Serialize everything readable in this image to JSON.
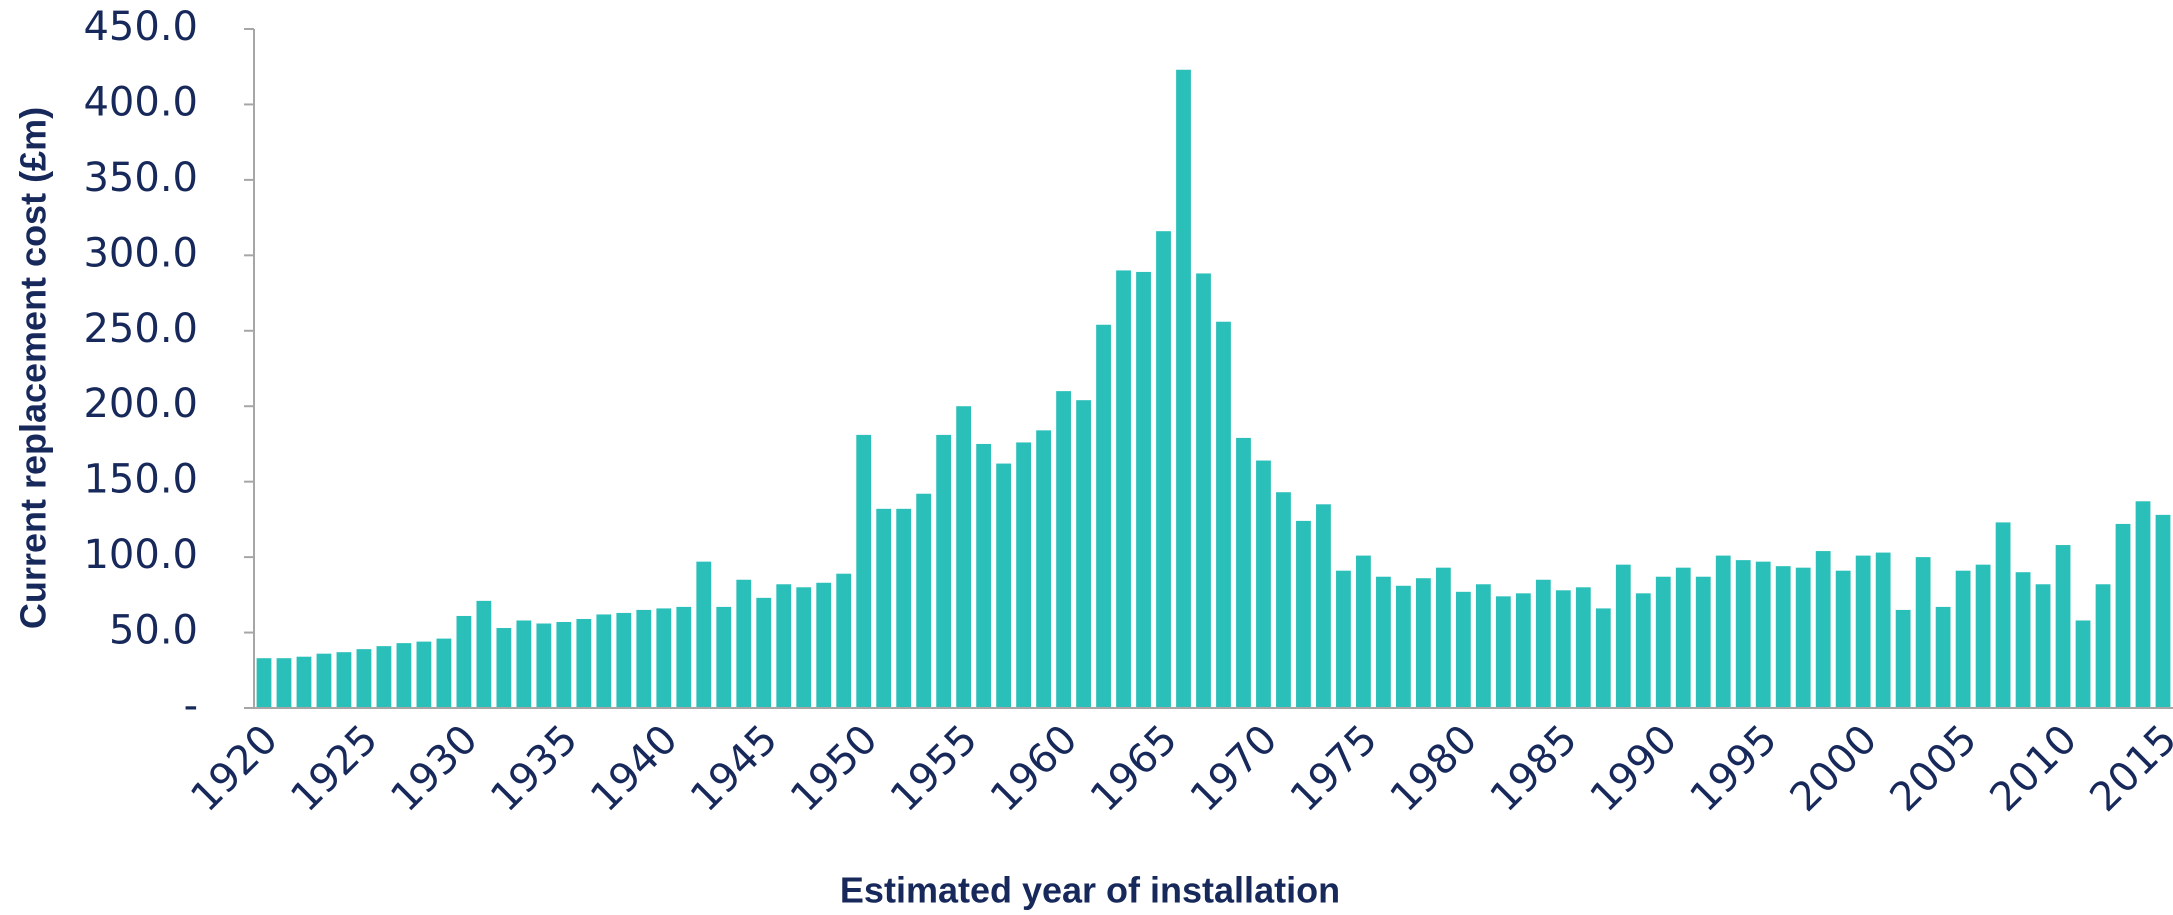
{
  "chart_data": {
    "type": "bar",
    "x_label": "Estimated year of installation",
    "y_label": "Current replacement cost (£m)",
    "categories": [
      "1920",
      null,
      null,
      null,
      null,
      "1925",
      null,
      null,
      null,
      null,
      "1930",
      null,
      null,
      null,
      null,
      "1935",
      null,
      null,
      null,
      null,
      "1940",
      null,
      null,
      null,
      null,
      "1945",
      null,
      null,
      null,
      null,
      "1950",
      null,
      null,
      null,
      null,
      "1955",
      null,
      null,
      null,
      null,
      "1960",
      null,
      null,
      null,
      null,
      "1965",
      null,
      null,
      null,
      null,
      "1970",
      null,
      null,
      null,
      null,
      "1975",
      null,
      null,
      null,
      null,
      "1980",
      null,
      null,
      null,
      null,
      "1985",
      null,
      null,
      null,
      null,
      "1990",
      null,
      null,
      null,
      null,
      "1995",
      null,
      null,
      null,
      null,
      "2000",
      null,
      null,
      null,
      null,
      "2005",
      null,
      null,
      null,
      null,
      "2010",
      null,
      null,
      null,
      null,
      "2015"
    ],
    "values": [
      33,
      33,
      34,
      36,
      37,
      39,
      41,
      43,
      44,
      46,
      61,
      71,
      53,
      58,
      56,
      57,
      59,
      62,
      63,
      65,
      66,
      67,
      97,
      67,
      85,
      73,
      82,
      80,
      83,
      89,
      181,
      132,
      132,
      142,
      181,
      200,
      175,
      162,
      176,
      184,
      210,
      204,
      254,
      290,
      289,
      316,
      423,
      288,
      256,
      179,
      164,
      143,
      124,
      135,
      91,
      101,
      87,
      81,
      86,
      93,
      77,
      82,
      74,
      76,
      85,
      78,
      80,
      66,
      95,
      76,
      87,
      93,
      87,
      101,
      98,
      97,
      94,
      93,
      104,
      91,
      101,
      103,
      65,
      100,
      67,
      91,
      95,
      123,
      90,
      82,
      108,
      58,
      82,
      122,
      137,
      128
    ],
    "color": "#2bbfb9",
    "ylim": [
      0,
      450
    ],
    "yticks": [
      {
        "value": 0,
        "label": "-"
      },
      {
        "value": 50,
        "label": "50.0"
      },
      {
        "value": 100,
        "label": "100.0"
      },
      {
        "value": 150,
        "label": "150.0"
      },
      {
        "value": 200,
        "label": "200.0"
      },
      {
        "value": 250,
        "label": "250.0"
      },
      {
        "value": 300,
        "label": "300.0"
      },
      {
        "value": 350,
        "label": "350.0"
      },
      {
        "value": 400,
        "label": "400.0"
      },
      {
        "value": 450,
        "label": "450.0"
      }
    ],
    "grid": false
  }
}
